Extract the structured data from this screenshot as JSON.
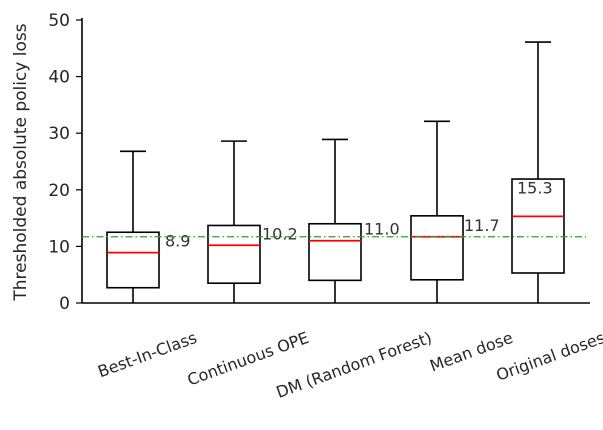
{
  "chart_data": {
    "type": "box",
    "ylabel": "Thresholded absolute policy loss",
    "ylim": [
      0,
      50
    ],
    "yticks": [
      0,
      10,
      20,
      30,
      40,
      50
    ],
    "grid": false,
    "categories": [
      "Best-In-Class",
      "Continuous OPE",
      "DM (Random Forest)",
      "Mean dose",
      "Original doses"
    ],
    "boxes": [
      {
        "name": "Best-In-Class",
        "whisker_low": 0,
        "q1": 2.7,
        "median": 8.9,
        "q3": 12.5,
        "whisker_high": 26.8,
        "median_label": "8.9"
      },
      {
        "name": "Continuous OPE",
        "whisker_low": 0,
        "q1": 3.5,
        "median": 10.2,
        "q3": 13.7,
        "whisker_high": 28.6,
        "median_label": "10.2"
      },
      {
        "name": "DM (Random Forest)",
        "whisker_low": 0,
        "q1": 4.0,
        "median": 11.0,
        "q3": 14.0,
        "whisker_high": 28.9,
        "median_label": "11.0"
      },
      {
        "name": "Mean dose",
        "whisker_low": 0,
        "q1": 4.1,
        "median": 11.7,
        "q3": 15.4,
        "whisker_high": 32.1,
        "median_label": "11.7"
      },
      {
        "name": "Original doses",
        "whisker_low": 0,
        "q1": 5.3,
        "median": 15.3,
        "q3": 21.9,
        "whisker_high": 46.1,
        "median_label": "15.3"
      }
    ],
    "reference_line": {
      "value": 11.7,
      "color": "#2ca02c",
      "style": "dash-dot"
    },
    "colors": {
      "box": "#000000",
      "median": "#ff0000",
      "axis": "#000000"
    }
  }
}
